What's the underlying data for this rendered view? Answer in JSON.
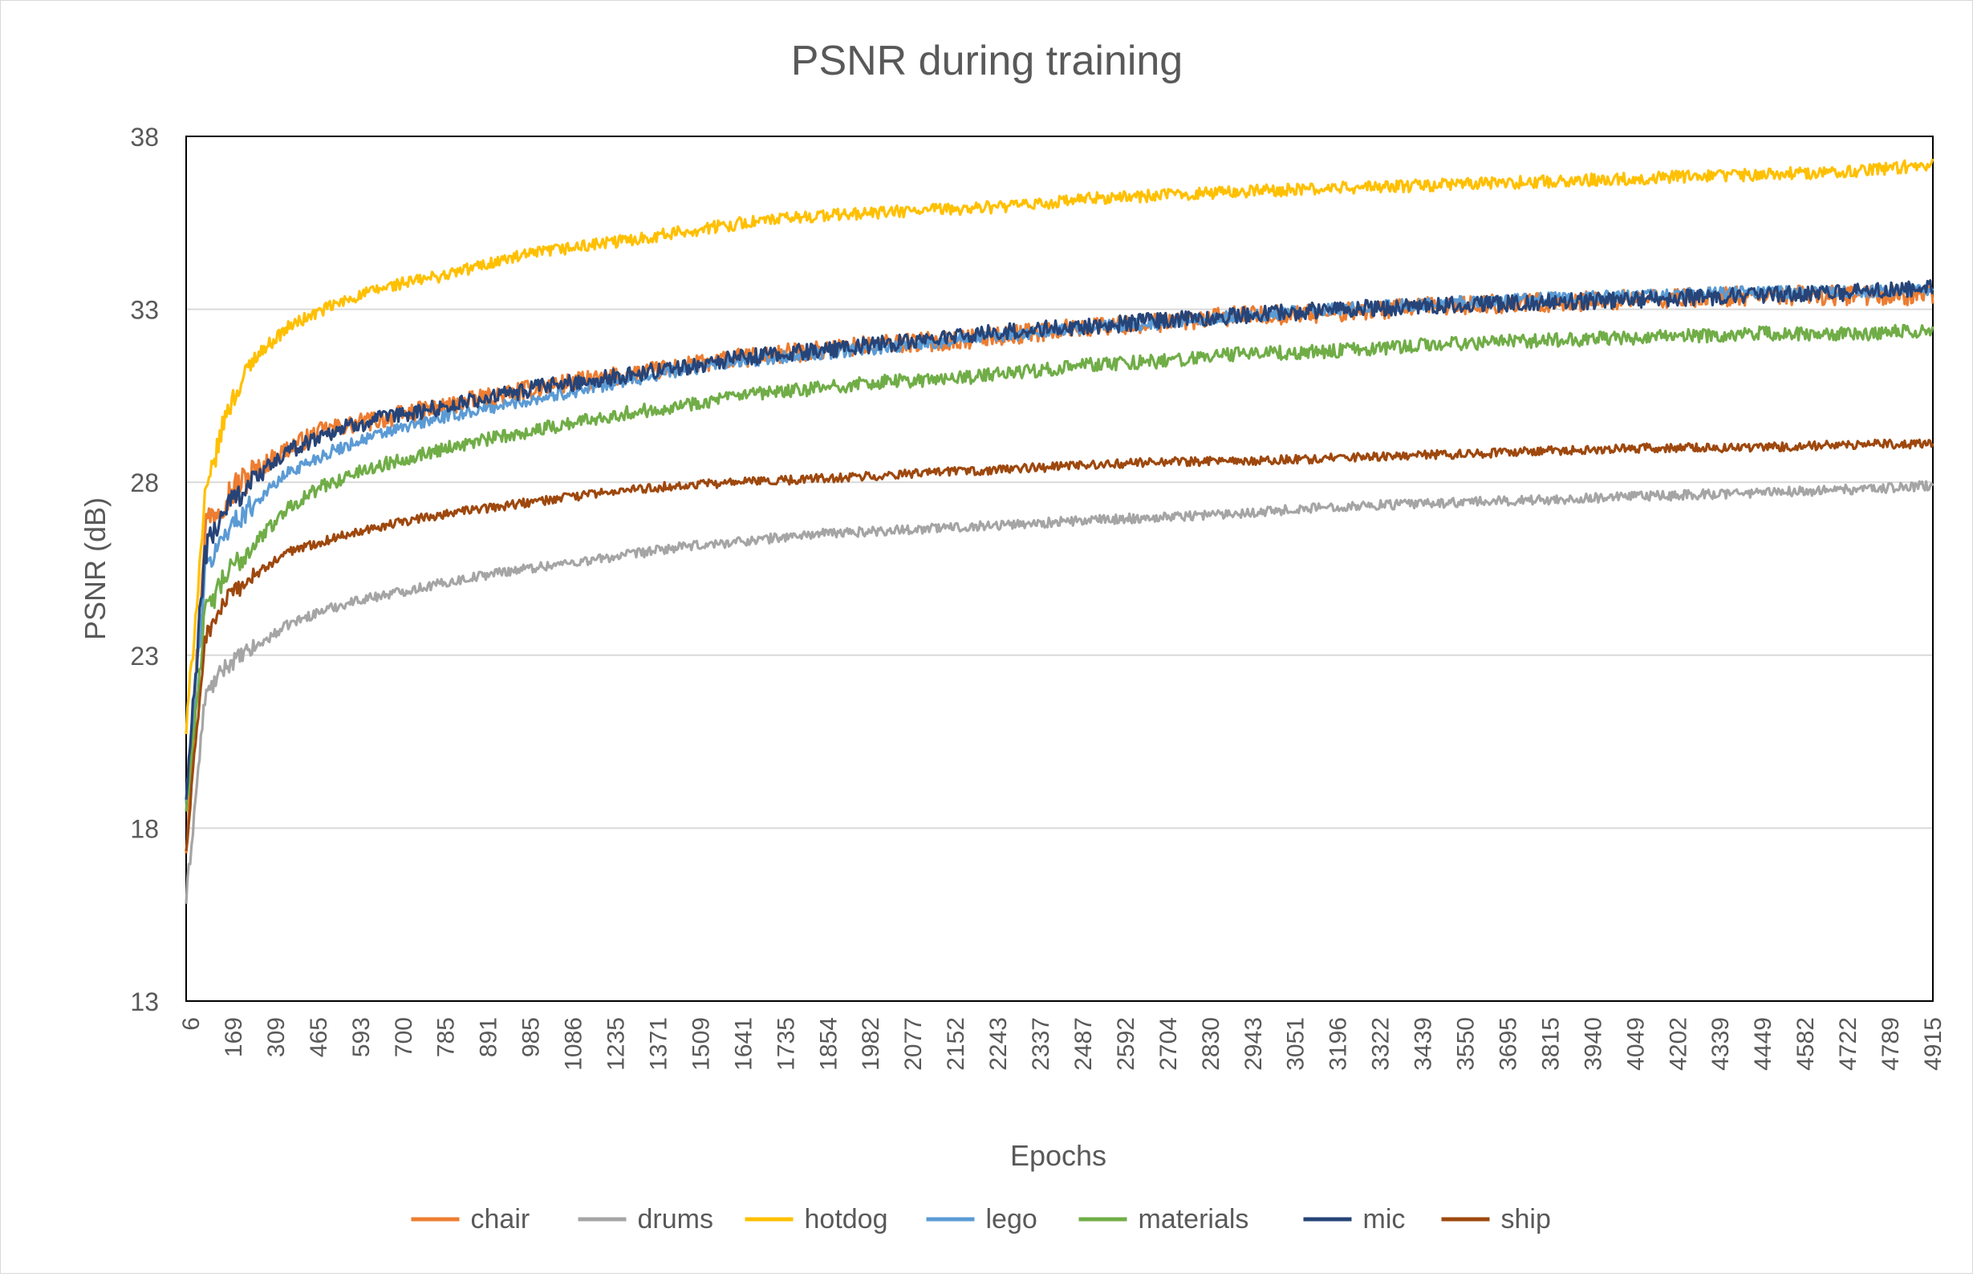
{
  "chart_data": {
    "type": "line",
    "title": "PSNR during training",
    "xlabel": "Epochs",
    "ylabel": "PSNR (dB)",
    "ylim": [
      13,
      38
    ],
    "yticks": [
      13,
      18,
      23,
      28,
      33,
      38
    ],
    "xlim": [
      6,
      5000
    ],
    "x_tick_labels": [
      "6",
      "169",
      "309",
      "465",
      "593",
      "700",
      "785",
      "891",
      "985",
      "1086",
      "1235",
      "1371",
      "1509",
      "1641",
      "1735",
      "1854",
      "1982",
      "2077",
      "2152",
      "2243",
      "2337",
      "2487",
      "2592",
      "2704",
      "2830",
      "2943",
      "3051",
      "3196",
      "3322",
      "3439",
      "3550",
      "3695",
      "3815",
      "3940",
      "4049",
      "4202",
      "4339",
      "4449",
      "4582",
      "4722",
      "4789",
      "4915"
    ],
    "grid": "horizontal",
    "legend": "bottom",
    "x_approx": [
      6,
      60,
      120,
      200,
      300,
      400,
      500,
      600,
      750,
      900,
      1050,
      1200,
      1400,
      1600,
      1800,
      2000,
      2200,
      2400,
      2600,
      2800,
      3000,
      3300,
      3600,
      3900,
      4200,
      4500,
      4800,
      5000
    ],
    "series": [
      {
        "name": "chair",
        "color": "#ED7D31",
        "values": [
          17.5,
          26.8,
          27.6,
          28.3,
          29.0,
          29.5,
          29.7,
          29.9,
          30.2,
          30.5,
          30.8,
          31.0,
          31.3,
          31.6,
          31.8,
          32.0,
          32.1,
          32.3,
          32.5,
          32.6,
          32.8,
          32.9,
          33.1,
          33.2,
          33.3,
          33.4,
          33.4,
          33.4
        ]
      },
      {
        "name": "drums",
        "color": "#A5A5A5",
        "values": [
          15.9,
          21.8,
          22.7,
          23.2,
          23.9,
          24.3,
          24.6,
          24.8,
          25.1,
          25.4,
          25.6,
          25.8,
          26.1,
          26.3,
          26.5,
          26.6,
          26.7,
          26.8,
          26.9,
          27.0,
          27.1,
          27.3,
          27.4,
          27.5,
          27.6,
          27.7,
          27.8,
          27.9
        ]
      },
      {
        "name": "hotdog",
        "color": "#FFC000",
        "values": [
          20.8,
          27.5,
          30.0,
          31.6,
          32.5,
          33.0,
          33.4,
          33.7,
          34.0,
          34.4,
          34.7,
          34.9,
          35.2,
          35.5,
          35.7,
          35.8,
          35.9,
          36.0,
          36.2,
          36.3,
          36.4,
          36.5,
          36.6,
          36.7,
          36.8,
          36.9,
          37.0,
          37.2
        ]
      },
      {
        "name": "lego",
        "color": "#5B9BD5",
        "values": [
          18.8,
          25.4,
          26.6,
          27.4,
          28.3,
          28.8,
          29.2,
          29.5,
          29.9,
          30.2,
          30.5,
          30.8,
          31.2,
          31.5,
          31.7,
          31.9,
          32.1,
          32.3,
          32.5,
          32.6,
          32.8,
          33.0,
          33.2,
          33.3,
          33.4,
          33.5,
          33.5,
          33.6
        ]
      },
      {
        "name": "materials",
        "color": "#70AD47",
        "values": [
          18.5,
          24.2,
          25.3,
          26.2,
          27.3,
          27.9,
          28.3,
          28.6,
          29.0,
          29.3,
          29.6,
          29.9,
          30.2,
          30.5,
          30.7,
          30.9,
          31.0,
          31.2,
          31.4,
          31.5,
          31.7,
          31.8,
          32.0,
          32.1,
          32.2,
          32.3,
          32.3,
          32.4
        ]
      },
      {
        "name": "mic",
        "color": "#264478",
        "values": [
          18.8,
          26.0,
          27.3,
          28.1,
          28.9,
          29.4,
          29.7,
          29.9,
          30.2,
          30.5,
          30.8,
          31.0,
          31.3,
          31.6,
          31.8,
          32.0,
          32.2,
          32.4,
          32.5,
          32.7,
          32.8,
          33.0,
          33.1,
          33.2,
          33.3,
          33.4,
          33.5,
          33.6
        ]
      },
      {
        "name": "ship",
        "color": "#9E480E",
        "values": [
          17.3,
          23.5,
          24.6,
          25.3,
          26.0,
          26.3,
          26.6,
          26.8,
          27.1,
          27.3,
          27.5,
          27.7,
          27.9,
          28.0,
          28.1,
          28.2,
          28.3,
          28.4,
          28.5,
          28.6,
          28.6,
          28.7,
          28.8,
          28.9,
          29.0,
          29.0,
          29.1,
          29.1
        ]
      }
    ]
  }
}
